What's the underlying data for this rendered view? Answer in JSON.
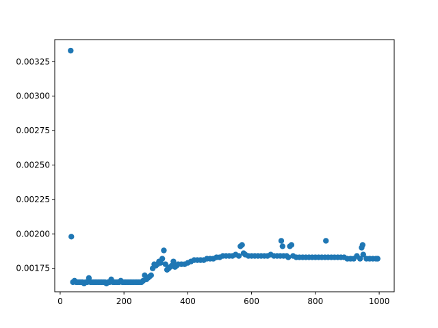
{
  "chart_data": {
    "type": "scatter",
    "title": "",
    "xlabel": "",
    "ylabel": "",
    "xlim": [
      -17,
      1047
    ],
    "ylim": [
      0.00158,
      0.00341
    ],
    "x_ticks": [
      0,
      200,
      400,
      600,
      800,
      1000
    ],
    "x_tick_labels": [
      "0",
      "200",
      "400",
      "600",
      "800",
      "1000"
    ],
    "y_ticks": [
      0.00175,
      0.002,
      0.00225,
      0.0025,
      0.00275,
      0.003,
      0.00325
    ],
    "y_tick_labels": [
      "0.00175",
      "0.00200",
      "0.00225",
      "0.00250",
      "0.00275",
      "0.00300",
      "0.00325"
    ],
    "grid": false,
    "marker_color": "#1f77b4",
    "series": [
      {
        "x": [
          33,
          35,
          40,
          45,
          50,
          55,
          60,
          65,
          70,
          75,
          80,
          85,
          90,
          95,
          100,
          105,
          110,
          115,
          120,
          125,
          130,
          135,
          140,
          145,
          150,
          155,
          160,
          165,
          170,
          175,
          180,
          185,
          190,
          195,
          200,
          205,
          210,
          215,
          220,
          225,
          230,
          235,
          240,
          245,
          250,
          255,
          260,
          265,
          270,
          275,
          280,
          285,
          290,
          295,
          300,
          305,
          310,
          315,
          320,
          325,
          330,
          335,
          340,
          345,
          350,
          355,
          360,
          365,
          370,
          380,
          390,
          400,
          410,
          420,
          430,
          440,
          450,
          460,
          470,
          480,
          490,
          500,
          510,
          520,
          530,
          540,
          550,
          560,
          565,
          570,
          575,
          580,
          590,
          600,
          610,
          620,
          630,
          640,
          650,
          660,
          670,
          680,
          690,
          693,
          697,
          700,
          710,
          715,
          720,
          725,
          730,
          740,
          750,
          760,
          770,
          780,
          790,
          800,
          810,
          820,
          830,
          833,
          840,
          850,
          860,
          870,
          880,
          890,
          900,
          910,
          920,
          930,
          940,
          945,
          948,
          950,
          960,
          970,
          980,
          990,
          995
        ],
        "y": [
          0.00333,
          0.00198,
          0.00165,
          0.00166,
          0.00165,
          0.00165,
          0.00165,
          0.00165,
          0.00165,
          0.00164,
          0.00165,
          0.00165,
          0.00168,
          0.00165,
          0.00165,
          0.00165,
          0.00165,
          0.00165,
          0.00165,
          0.00165,
          0.00165,
          0.00165,
          0.00165,
          0.00164,
          0.00165,
          0.00165,
          0.00167,
          0.00165,
          0.00165,
          0.00165,
          0.00165,
          0.00165,
          0.00166,
          0.00165,
          0.00165,
          0.00165,
          0.00165,
          0.00165,
          0.00165,
          0.00165,
          0.00165,
          0.00165,
          0.00165,
          0.00165,
          0.00165,
          0.00165,
          0.00166,
          0.0017,
          0.00167,
          0.00168,
          0.00169,
          0.0017,
          0.00175,
          0.00178,
          0.00177,
          0.00178,
          0.0018,
          0.00179,
          0.00182,
          0.00188,
          0.00178,
          0.00174,
          0.00175,
          0.00176,
          0.00177,
          0.0018,
          0.00176,
          0.00177,
          0.00178,
          0.00178,
          0.00178,
          0.00179,
          0.0018,
          0.00181,
          0.00181,
          0.00181,
          0.00181,
          0.00182,
          0.00182,
          0.00182,
          0.00183,
          0.00183,
          0.00184,
          0.00184,
          0.00184,
          0.00184,
          0.00185,
          0.00184,
          0.00191,
          0.00192,
          0.00186,
          0.00185,
          0.00184,
          0.00184,
          0.00184,
          0.00184,
          0.00184,
          0.00184,
          0.00184,
          0.00185,
          0.00184,
          0.00184,
          0.00184,
          0.00195,
          0.00191,
          0.00184,
          0.00184,
          0.00183,
          0.00191,
          0.00192,
          0.00184,
          0.00183,
          0.00183,
          0.00183,
          0.00183,
          0.00183,
          0.00183,
          0.00183,
          0.00183,
          0.00183,
          0.00183,
          0.00195,
          0.00183,
          0.00183,
          0.00183,
          0.00183,
          0.00183,
          0.00183,
          0.00182,
          0.00182,
          0.00182,
          0.00184,
          0.00182,
          0.0019,
          0.00192,
          0.00185,
          0.00182,
          0.00182,
          0.00182,
          0.00182,
          0.00182
        ]
      }
    ]
  }
}
